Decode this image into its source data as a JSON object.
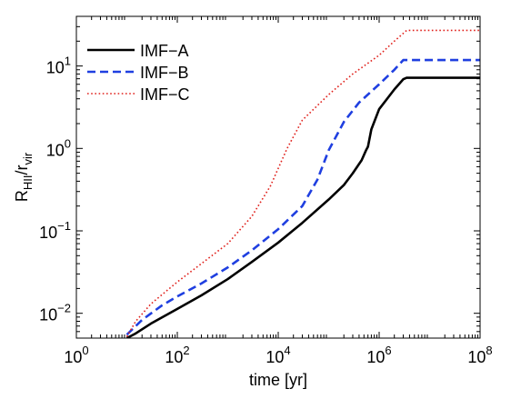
{
  "chart_data": {
    "type": "line",
    "title": "",
    "xlabel": "time [yr]",
    "ylabel": {
      "base": "R",
      "sub1": "HII",
      "slash": "/r",
      "sub2": "vir"
    },
    "x_scale": "log",
    "y_scale": "log",
    "xlim": [
      1,
      100000000
    ],
    "ylim": [
      0.005,
      40
    ],
    "x_ticks": [
      {
        "value": 1,
        "base": "10",
        "exp": "0"
      },
      {
        "value": 100,
        "base": "10",
        "exp": "2"
      },
      {
        "value": 10000,
        "base": "10",
        "exp": "4"
      },
      {
        "value": 1000000,
        "base": "10",
        "exp": "6"
      },
      {
        "value": 100000000,
        "base": "10",
        "exp": "8"
      }
    ],
    "y_ticks": [
      {
        "value": 0.01,
        "base": "10",
        "exp": "−2"
      },
      {
        "value": 0.1,
        "base": "10",
        "exp": "−1"
      },
      {
        "value": 1,
        "base": "10",
        "exp": "0"
      },
      {
        "value": 10,
        "base": "10",
        "exp": "1"
      }
    ],
    "grid": false,
    "legend_position": "top-left",
    "series": [
      {
        "name": "IMF−A",
        "color": "#000000",
        "style": "solid",
        "points": [
          [
            10,
            0.005
          ],
          [
            15,
            0.0057
          ],
          [
            30,
            0.0075
          ],
          [
            100,
            0.0113
          ],
          [
            300,
            0.0165
          ],
          [
            1000,
            0.026
          ],
          [
            3000,
            0.042
          ],
          [
            10000,
            0.072
          ],
          [
            30000,
            0.125
          ],
          [
            100000,
            0.24
          ],
          [
            200000,
            0.36
          ],
          [
            300000,
            0.5
          ],
          [
            450000,
            0.72
          ],
          [
            550000,
            0.95
          ],
          [
            600000,
            1.05
          ],
          [
            700000,
            1.7
          ],
          [
            1000000,
            3.0
          ],
          [
            2000000,
            5.2
          ],
          [
            3000000,
            6.9
          ],
          [
            3500000,
            7.2
          ],
          [
            100000000,
            7.2
          ]
        ]
      },
      {
        "name": "IMF−B",
        "color": "#1f3fe0",
        "style": "dashed",
        "points": [
          [
            10,
            0.0055
          ],
          [
            20,
            0.0083
          ],
          [
            50,
            0.0125
          ],
          [
            100,
            0.016
          ],
          [
            300,
            0.023
          ],
          [
            1000,
            0.036
          ],
          [
            3000,
            0.058
          ],
          [
            10000,
            0.105
          ],
          [
            30000,
            0.2
          ],
          [
            60000,
            0.42
          ],
          [
            100000,
            0.95
          ],
          [
            200000,
            2.1
          ],
          [
            400000,
            3.6
          ],
          [
            1000000,
            6.0
          ],
          [
            2000000,
            9.0
          ],
          [
            3000000,
            11.8
          ],
          [
            100000000,
            11.8
          ]
        ]
      },
      {
        "name": "IMF−C",
        "color": "#e0201b",
        "style": "dotted",
        "points": [
          [
            10,
            0.0052
          ],
          [
            15,
            0.008
          ],
          [
            30,
            0.013
          ],
          [
            100,
            0.024
          ],
          [
            300,
            0.04
          ],
          [
            1000,
            0.07
          ],
          [
            3000,
            0.15
          ],
          [
            7000,
            0.35
          ],
          [
            15000,
            1.0
          ],
          [
            30000,
            2.2
          ],
          [
            100000,
            4.5
          ],
          [
            300000,
            8.0
          ],
          [
            1000000,
            13.5
          ],
          [
            2000000,
            20.0
          ],
          [
            3500000,
            27.0
          ],
          [
            100000000,
            27.0
          ]
        ]
      }
    ]
  }
}
